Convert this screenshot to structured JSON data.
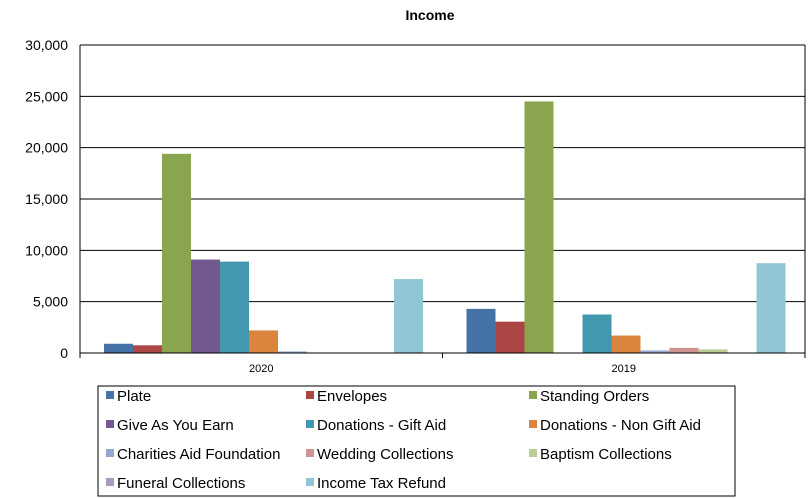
{
  "chart_data": {
    "type": "bar",
    "title": "Income",
    "categories": [
      "2020",
      "2019"
    ],
    "ylim": [
      0,
      30000
    ],
    "yticks": [
      0,
      5000,
      10000,
      15000,
      20000,
      25000,
      30000
    ],
    "ytick_labels": [
      "0",
      "5,000",
      "10,000",
      "15,000",
      "20,000",
      "25,000",
      "30,000"
    ],
    "grid": true,
    "legend_position": "bottom",
    "series": [
      {
        "name": "Plate",
        "color": "#4572A7",
        "values": [
          900,
          4300
        ]
      },
      {
        "name": "Envelopes",
        "color": "#AA4643",
        "values": [
          750,
          3050
        ]
      },
      {
        "name": "Standing Orders",
        "color": "#89A54E",
        "values": [
          19400,
          24500
        ]
      },
      {
        "name": "Give As You Earn",
        "color": "#71588F",
        "values": [
          9100,
          0
        ]
      },
      {
        "name": "Donations - Gift Aid",
        "color": "#4198AF",
        "values": [
          8900,
          3750
        ]
      },
      {
        "name": "Donations - Non Gift Aid",
        "color": "#DB843D",
        "values": [
          2200,
          1700
        ]
      },
      {
        "name": "Charities Aid Foundation",
        "color": "#93A9CF",
        "values": [
          150,
          250
        ]
      },
      {
        "name": "Wedding Collections",
        "color": "#D19392",
        "values": [
          0,
          500
        ]
      },
      {
        "name": "Baptism Collections",
        "color": "#B9CD96",
        "values": [
          0,
          350
        ]
      },
      {
        "name": "Funeral Collections",
        "color": "#A99BBD",
        "values": [
          0,
          0
        ]
      },
      {
        "name": "Income Tax Refund",
        "color": "#92C5D6",
        "values": [
          7200,
          8750
        ]
      }
    ]
  }
}
